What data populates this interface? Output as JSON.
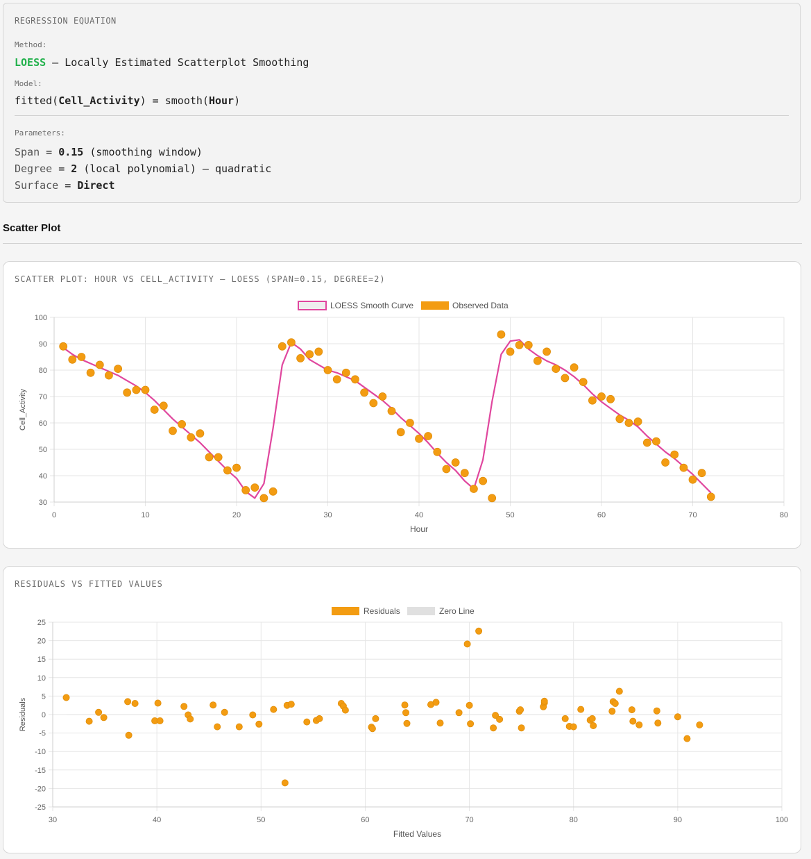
{
  "equation": {
    "header": "REGRESSION EQUATION",
    "method_label": "Method:",
    "method_name": "LOESS",
    "method_desc": " — Locally Estimated Scatterplot Smoothing",
    "model_label": "Model:",
    "model_prefix": "fitted(",
    "model_response": "Cell_Activity",
    "model_mid": ") = smooth(",
    "model_predictor": "Hour",
    "model_suffix": ")",
    "parameters_label": "Parameters:",
    "params": [
      {
        "name": "Span",
        "eq": " = ",
        "value": "0.15",
        "desc": " (smoothing window)"
      },
      {
        "name": "Degree",
        "eq": " = ",
        "value": "2",
        "desc": " (local polynomial) — quadratic"
      },
      {
        "name": "Surface",
        "eq": " = ",
        "value": "Direct",
        "desc": ""
      }
    ]
  },
  "section_title": "Scatter Plot",
  "colors": {
    "curve": "#e0479e",
    "points": "#f39c12",
    "zero_line": "#e0e0e0",
    "grid": "#e6e6e6"
  },
  "chart_data": [
    {
      "type": "scatter",
      "title": "SCATTER PLOT: HOUR VS CELL_ACTIVITY — LOESS (SPAN=0.15, DEGREE=2)",
      "xlabel": "Hour",
      "ylabel": "Cell_Activity",
      "xlim": [
        0,
        80
      ],
      "ylim": [
        30,
        100
      ],
      "xticks": [
        0,
        10,
        20,
        30,
        40,
        50,
        60,
        70,
        80
      ],
      "yticks": [
        30,
        40,
        50,
        60,
        70,
        80,
        90,
        100
      ],
      "grid": true,
      "legend": "top-center",
      "series": [
        {
          "name": "LOESS Smooth Curve",
          "kind": "line",
          "x": [
            1,
            2,
            3,
            4,
            5,
            6,
            7,
            8,
            9,
            10,
            11,
            12,
            13,
            14,
            15,
            16,
            17,
            18,
            19,
            20,
            21,
            22,
            23,
            24,
            25,
            26,
            27,
            28,
            29,
            30,
            31,
            32,
            33,
            34,
            35,
            36,
            37,
            38,
            39,
            40,
            41,
            42,
            43,
            44,
            45,
            46,
            47,
            48,
            49,
            50,
            51,
            52,
            53,
            54,
            55,
            56,
            57,
            58,
            59,
            60,
            61,
            62,
            63,
            64,
            65,
            66,
            67,
            68,
            69,
            70,
            71,
            72
          ],
          "y": [
            88.5,
            86,
            84,
            82.5,
            81,
            79.5,
            78,
            76,
            74,
            71.5,
            68.5,
            65,
            61.5,
            58.5,
            55.5,
            52.5,
            49,
            45.5,
            42,
            39,
            34,
            31.5,
            37,
            58,
            82,
            90.5,
            88,
            84,
            82,
            80,
            79,
            77.5,
            76,
            73.5,
            71,
            68.5,
            65.5,
            62,
            59,
            56,
            52.5,
            48.5,
            45,
            42,
            38,
            35,
            46,
            68,
            86,
            91,
            91.5,
            88,
            85.5,
            83.5,
            82,
            80,
            77.5,
            74.5,
            71,
            68,
            65.5,
            63,
            61,
            58.5,
            55,
            52,
            49,
            46.5,
            43.5,
            40.5,
            37,
            33.5
          ]
        },
        {
          "name": "Observed Data",
          "kind": "scatter",
          "x": [
            1,
            2,
            3,
            4,
            5,
            6,
            7,
            8,
            9,
            10,
            11,
            12,
            13,
            14,
            15,
            16,
            17,
            18,
            19,
            20,
            21,
            22,
            23,
            24,
            25,
            26,
            27,
            28,
            29,
            30,
            31,
            32,
            33,
            34,
            35,
            36,
            37,
            38,
            39,
            40,
            41,
            42,
            43,
            44,
            45,
            46,
            47,
            48,
            49,
            50,
            51,
            52,
            53,
            54,
            55,
            56,
            57,
            58,
            59,
            60,
            61,
            62,
            63,
            64,
            65,
            66,
            67,
            68,
            69,
            70,
            71,
            72
          ],
          "y": [
            89,
            84,
            85,
            79,
            82,
            78,
            80.5,
            71.5,
            72.5,
            72.5,
            65,
            66.5,
            57,
            59.5,
            54.5,
            56,
            47,
            47,
            42,
            43,
            34.5,
            35.5,
            31.5,
            34,
            89,
            90.5,
            84.5,
            86,
            87,
            80,
            76.5,
            79,
            76.5,
            71.5,
            67.5,
            70,
            64.5,
            56.5,
            60,
            54,
            55,
            49,
            42.5,
            45,
            41,
            35,
            38,
            31.5,
            93.5,
            87,
            89.5,
            89.5,
            83.5,
            87,
            80.5,
            77,
            81,
            75.5,
            68.5,
            70,
            69,
            61.5,
            60,
            60.5,
            52.5,
            53,
            45,
            48,
            43,
            38.5,
            41,
            32
          ]
        }
      ]
    },
    {
      "type": "scatter",
      "title": "RESIDUALS VS FITTED VALUES",
      "xlabel": "Fitted Values",
      "ylabel": "Residuals",
      "xlim": [
        30,
        100
      ],
      "ylim": [
        -25,
        25
      ],
      "xticks": [
        30,
        40,
        50,
        60,
        70,
        80,
        90,
        100
      ],
      "yticks": [
        -25,
        -20,
        -15,
        -10,
        -5,
        0,
        5,
        10,
        15,
        20,
        25
      ],
      "grid": true,
      "legend": "top-center",
      "series": [
        {
          "name": "Residuals",
          "kind": "scatter",
          "x": [
            31.3,
            33.5,
            34.4,
            34.9,
            37.2,
            37.3,
            37.9,
            39.8,
            40.1,
            40.3,
            42.6,
            43.0,
            43.2,
            45.4,
            45.8,
            46.5,
            47.9,
            49.2,
            49.8,
            51.2,
            52.3,
            52.5,
            52.9,
            54.4,
            55.3,
            55.6,
            57.7,
            57.9,
            58.1,
            60.6,
            60.7,
            61.0,
            63.8,
            63.9,
            64.0,
            66.3,
            66.8,
            67.2,
            69.0,
            69.8,
            70.0,
            70.1,
            70.9,
            72.3,
            72.5,
            72.9,
            74.8,
            74.9,
            75.0,
            77.1,
            77.2,
            77.2,
            79.2,
            79.6,
            80.0,
            80.7,
            81.6,
            81.8,
            81.9,
            83.7,
            83.8,
            84.0,
            84.4,
            85.6,
            85.7,
            86.3,
            88.0,
            88.1,
            90.0,
            90.9,
            92.1
          ],
          "y": [
            4.6,
            -1.8,
            0.6,
            -0.8,
            3.5,
            -5.6,
            3.0,
            -1.7,
            3.1,
            -1.7,
            2.2,
            -0.1,
            -1.2,
            2.6,
            -3.3,
            0.6,
            -3.3,
            -0.1,
            -2.6,
            1.4,
            -18.5,
            2.5,
            2.8,
            -2.0,
            -1.6,
            -1.1,
            3.0,
            2.3,
            1.2,
            -3.4,
            -3.8,
            -1.1,
            2.6,
            0.5,
            -2.4,
            2.7,
            3.3,
            -2.3,
            0.5,
            19.1,
            2.5,
            -2.5,
            22.6,
            -3.6,
            -0.2,
            -1.3,
            0.9,
            1.3,
            -3.6,
            2.1,
            3.2,
            3.6,
            -1.1,
            -3.2,
            -3.3,
            1.4,
            -1.5,
            -1.1,
            -3.0,
            0.9,
            3.5,
            3.0,
            6.3,
            1.3,
            -1.8,
            -2.8,
            1.0,
            -2.3,
            -0.6,
            -6.5,
            -2.8
          ]
        },
        {
          "name": "Zero Line",
          "kind": "line",
          "x": [
            31.3,
            92.1
          ],
          "y": [
            0,
            0
          ]
        }
      ]
    }
  ]
}
